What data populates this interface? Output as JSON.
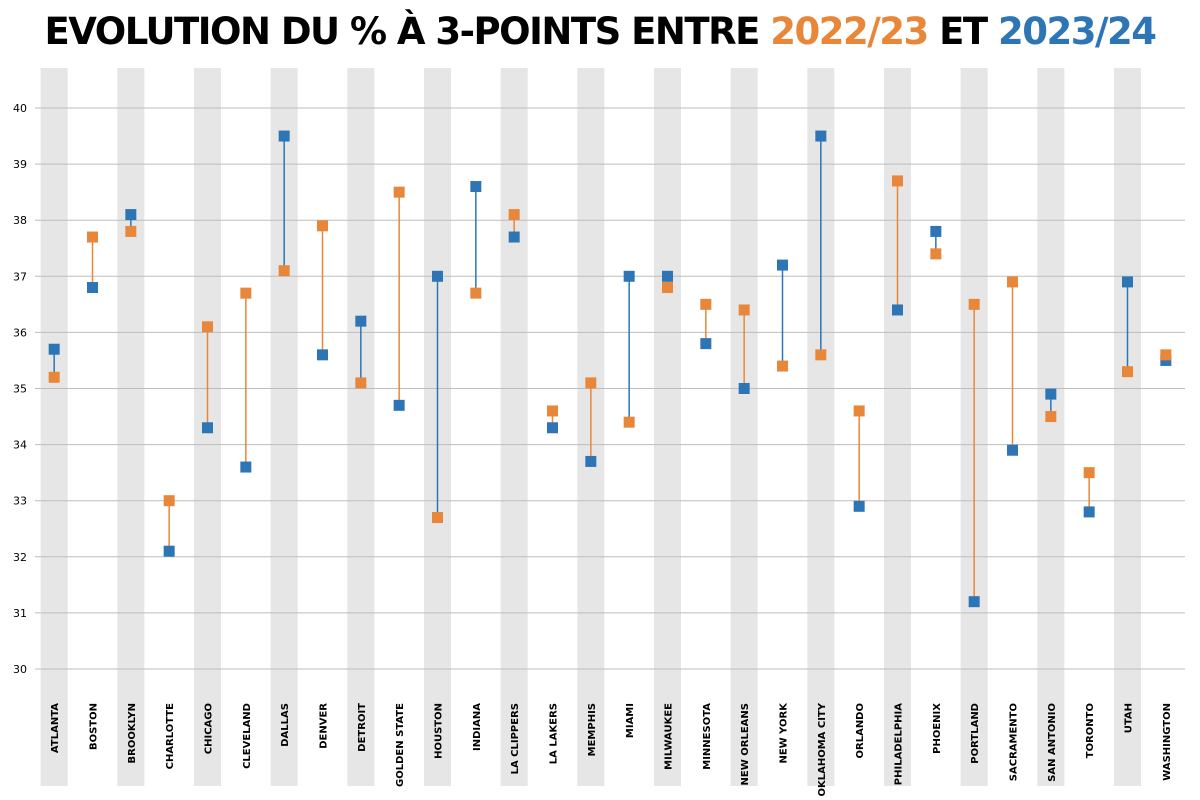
{
  "title": {
    "main": "EVOLUTION DU % À 3-POINTS ENTRE ",
    "mid": " ET "
  },
  "colors": {
    "s1": "#E8873A",
    "s2": "#2E75B6",
    "band": "#E6E6E6",
    "grid": "#BDBDBD"
  },
  "chart_data": {
    "type": "dumbbell",
    "title": "EVOLUTION DU % À 3-POINTS ENTRE 2022/23 ET 2023/24",
    "ylim": [
      30,
      40
    ],
    "yticks": [
      30,
      31,
      32,
      33,
      34,
      35,
      36,
      37,
      38,
      39,
      40
    ],
    "grid": true,
    "categories": [
      "ATLANTA",
      "BOSTON",
      "BROOKLYN",
      "CHARLOTTE",
      "CHICAGO",
      "CLEVELAND",
      "DALLAS",
      "DENVER",
      "DETROIT",
      "GOLDEN STATE",
      "HOUSTON",
      "INDIANA",
      "LA CLIPPERS",
      "LA LAKERS",
      "MEMPHIS",
      "MIAMI",
      "MILWAUKEE",
      "MINNESOTA",
      "NEW ORLEANS",
      "NEW YORK",
      "OKLAHOMA CITY",
      "ORLANDO",
      "PHILADELPHIA",
      "PHOENIX",
      "PORTLAND",
      "SACRAMENTO",
      "SAN ANTONIO",
      "TORONTO",
      "UTAH",
      "WASHINGTON"
    ],
    "series": [
      {
        "name": "2022/23",
        "color": "#E8873A",
        "values": [
          35.2,
          37.7,
          37.8,
          33.0,
          36.1,
          36.7,
          37.1,
          37.9,
          35.1,
          38.5,
          32.7,
          36.7,
          38.1,
          34.6,
          35.1,
          34.4,
          36.8,
          36.5,
          36.4,
          35.4,
          35.6,
          34.6,
          38.7,
          37.4,
          36.5,
          36.9,
          34.5,
          33.5,
          35.3,
          35.6
        ]
      },
      {
        "name": "2023/24",
        "color": "#2E75B6",
        "values": [
          35.7,
          36.8,
          38.1,
          32.1,
          34.3,
          33.6,
          39.5,
          35.6,
          36.2,
          34.7,
          37.0,
          38.6,
          37.7,
          34.3,
          33.7,
          37.0,
          37.0,
          35.8,
          35.0,
          37.2,
          39.5,
          32.9,
          36.4,
          37.8,
          31.2,
          33.9,
          34.9,
          32.8,
          36.9,
          35.5
        ]
      }
    ]
  }
}
